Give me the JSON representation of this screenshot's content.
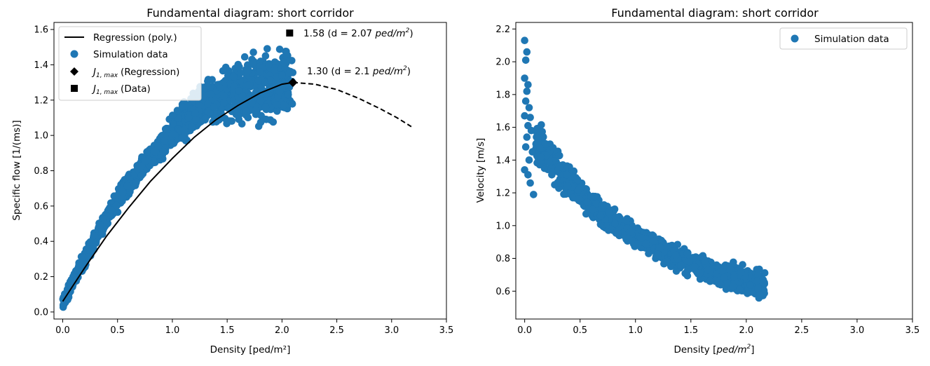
{
  "colors": {
    "scatter": "#1f77b4",
    "line": "#000000"
  },
  "chart_data": [
    {
      "type": "scatter",
      "title": "Fundamental diagram: short corridor",
      "xlabel": "Density [ped/m²]",
      "ylabel": "Specific flow [1/(ms)]",
      "xlim": [
        -0.08,
        3.5
      ],
      "ylim": [
        -0.04,
        1.64
      ],
      "xticks": [
        "0.0",
        "0.5",
        "1.0",
        "1.5",
        "2.0",
        "2.5",
        "3.0",
        "3.5"
      ],
      "yticks": [
        "0.0",
        "0.2",
        "0.4",
        "0.6",
        "0.8",
        "1.0",
        "1.2",
        "1.4",
        "1.6"
      ],
      "legend_position": "top-left",
      "legend": {
        "regression": "Regression (poly.)",
        "simulation": "Simulation data",
        "jmax_reg": "(Regression)",
        "jmax_data": "(Data)",
        "jmax_sym": "J",
        "jmax_sub": "1, max"
      },
      "regression_solid": {
        "x": [
          0.0,
          0.2,
          0.4,
          0.6,
          0.8,
          1.0,
          1.2,
          1.4,
          1.6,
          1.8,
          2.0,
          2.1
        ],
        "y": [
          0.06,
          0.25,
          0.43,
          0.59,
          0.74,
          0.87,
          0.99,
          1.09,
          1.17,
          1.24,
          1.29,
          1.3
        ]
      },
      "regression_dashed": {
        "x": [
          2.1,
          2.3,
          2.5,
          2.7,
          2.9,
          3.05,
          3.18
        ],
        "y": [
          1.3,
          1.29,
          1.26,
          1.21,
          1.15,
          1.1,
          1.05
        ]
      },
      "scatter_band": {
        "x": [
          0.0,
          0.1,
          0.2,
          0.3,
          0.4,
          0.5,
          0.6,
          0.7,
          0.8,
          0.9,
          1.0,
          1.1,
          1.2,
          1.3,
          1.4,
          1.5,
          1.6,
          1.7,
          1.8,
          1.9,
          2.0,
          2.1
        ],
        "center": [
          0.05,
          0.18,
          0.3,
          0.42,
          0.53,
          0.63,
          0.72,
          0.8,
          0.87,
          0.93,
          1.02,
          1.07,
          1.13,
          1.18,
          1.21,
          1.23,
          1.25,
          1.27,
          1.28,
          1.29,
          1.29,
          1.28
        ],
        "spread": [
          0.03,
          0.04,
          0.04,
          0.04,
          0.04,
          0.05,
          0.05,
          0.05,
          0.05,
          0.06,
          0.07,
          0.08,
          0.09,
          0.1,
          0.12,
          0.13,
          0.14,
          0.15,
          0.16,
          0.17,
          0.18,
          0.18
        ]
      },
      "jmax_regression": {
        "x": 2.1,
        "y": 1.3,
        "label": "1.30 (d = 2.1 ",
        "unit": "ped/m",
        "sup": "2",
        "close": ")"
      },
      "jmax_data": {
        "x": 2.07,
        "y": 1.58,
        "label": "1.58 (d = 2.07 ",
        "unit": "ped/m",
        "sup": "2",
        "close": ")"
      }
    },
    {
      "type": "scatter",
      "title": "Fundamental diagram: short corridor",
      "xlabel": "Density [",
      "xlabel_italic": "ped/m",
      "xlabel_sup": "2",
      "xlabel_close": "]",
      "ylabel": "Velocity [m/s]",
      "xlim": [
        -0.08,
        3.5
      ],
      "ylim": [
        0.43,
        2.24
      ],
      "xticks": [
        "0.0",
        "0.5",
        "1.0",
        "1.5",
        "2.0",
        "2.5",
        "3.0",
        "3.5"
      ],
      "yticks": [
        "0.6",
        "0.8",
        "1.0",
        "1.2",
        "1.4",
        "1.6",
        "1.8",
        "2.0",
        "2.2"
      ],
      "legend_position": "top-right",
      "legend": {
        "simulation": "Simulation data"
      },
      "scatter_band": {
        "x": [
          0.1,
          0.2,
          0.3,
          0.4,
          0.5,
          0.6,
          0.7,
          0.8,
          0.9,
          1.0,
          1.1,
          1.2,
          1.3,
          1.4,
          1.5,
          1.6,
          1.7,
          1.8,
          1.9,
          2.0,
          2.1
        ],
        "center": [
          1.52,
          1.42,
          1.34,
          1.27,
          1.2,
          1.13,
          1.07,
          1.02,
          0.98,
          0.94,
          0.9,
          0.86,
          0.83,
          0.8,
          0.77,
          0.74,
          0.72,
          0.7,
          0.68,
          0.66,
          0.64
        ],
        "spread": [
          0.12,
          0.1,
          0.09,
          0.08,
          0.07,
          0.07,
          0.06,
          0.06,
          0.06,
          0.06,
          0.06,
          0.06,
          0.06,
          0.06,
          0.06,
          0.06,
          0.06,
          0.07,
          0.07,
          0.07,
          0.07
        ]
      },
      "low_density_points": {
        "x": [
          0.0,
          0.01,
          0.02,
          0.0,
          0.03,
          0.01,
          0.02,
          0.04,
          0.0,
          0.05,
          0.03,
          0.06,
          0.02,
          0.01,
          0.07,
          0.04,
          0.0,
          0.03,
          0.05,
          0.08
        ],
        "y": [
          2.13,
          2.01,
          2.06,
          1.9,
          1.86,
          1.76,
          1.82,
          1.72,
          1.67,
          1.66,
          1.61,
          1.58,
          1.54,
          1.48,
          1.45,
          1.4,
          1.34,
          1.31,
          1.26,
          1.19
        ]
      }
    }
  ]
}
